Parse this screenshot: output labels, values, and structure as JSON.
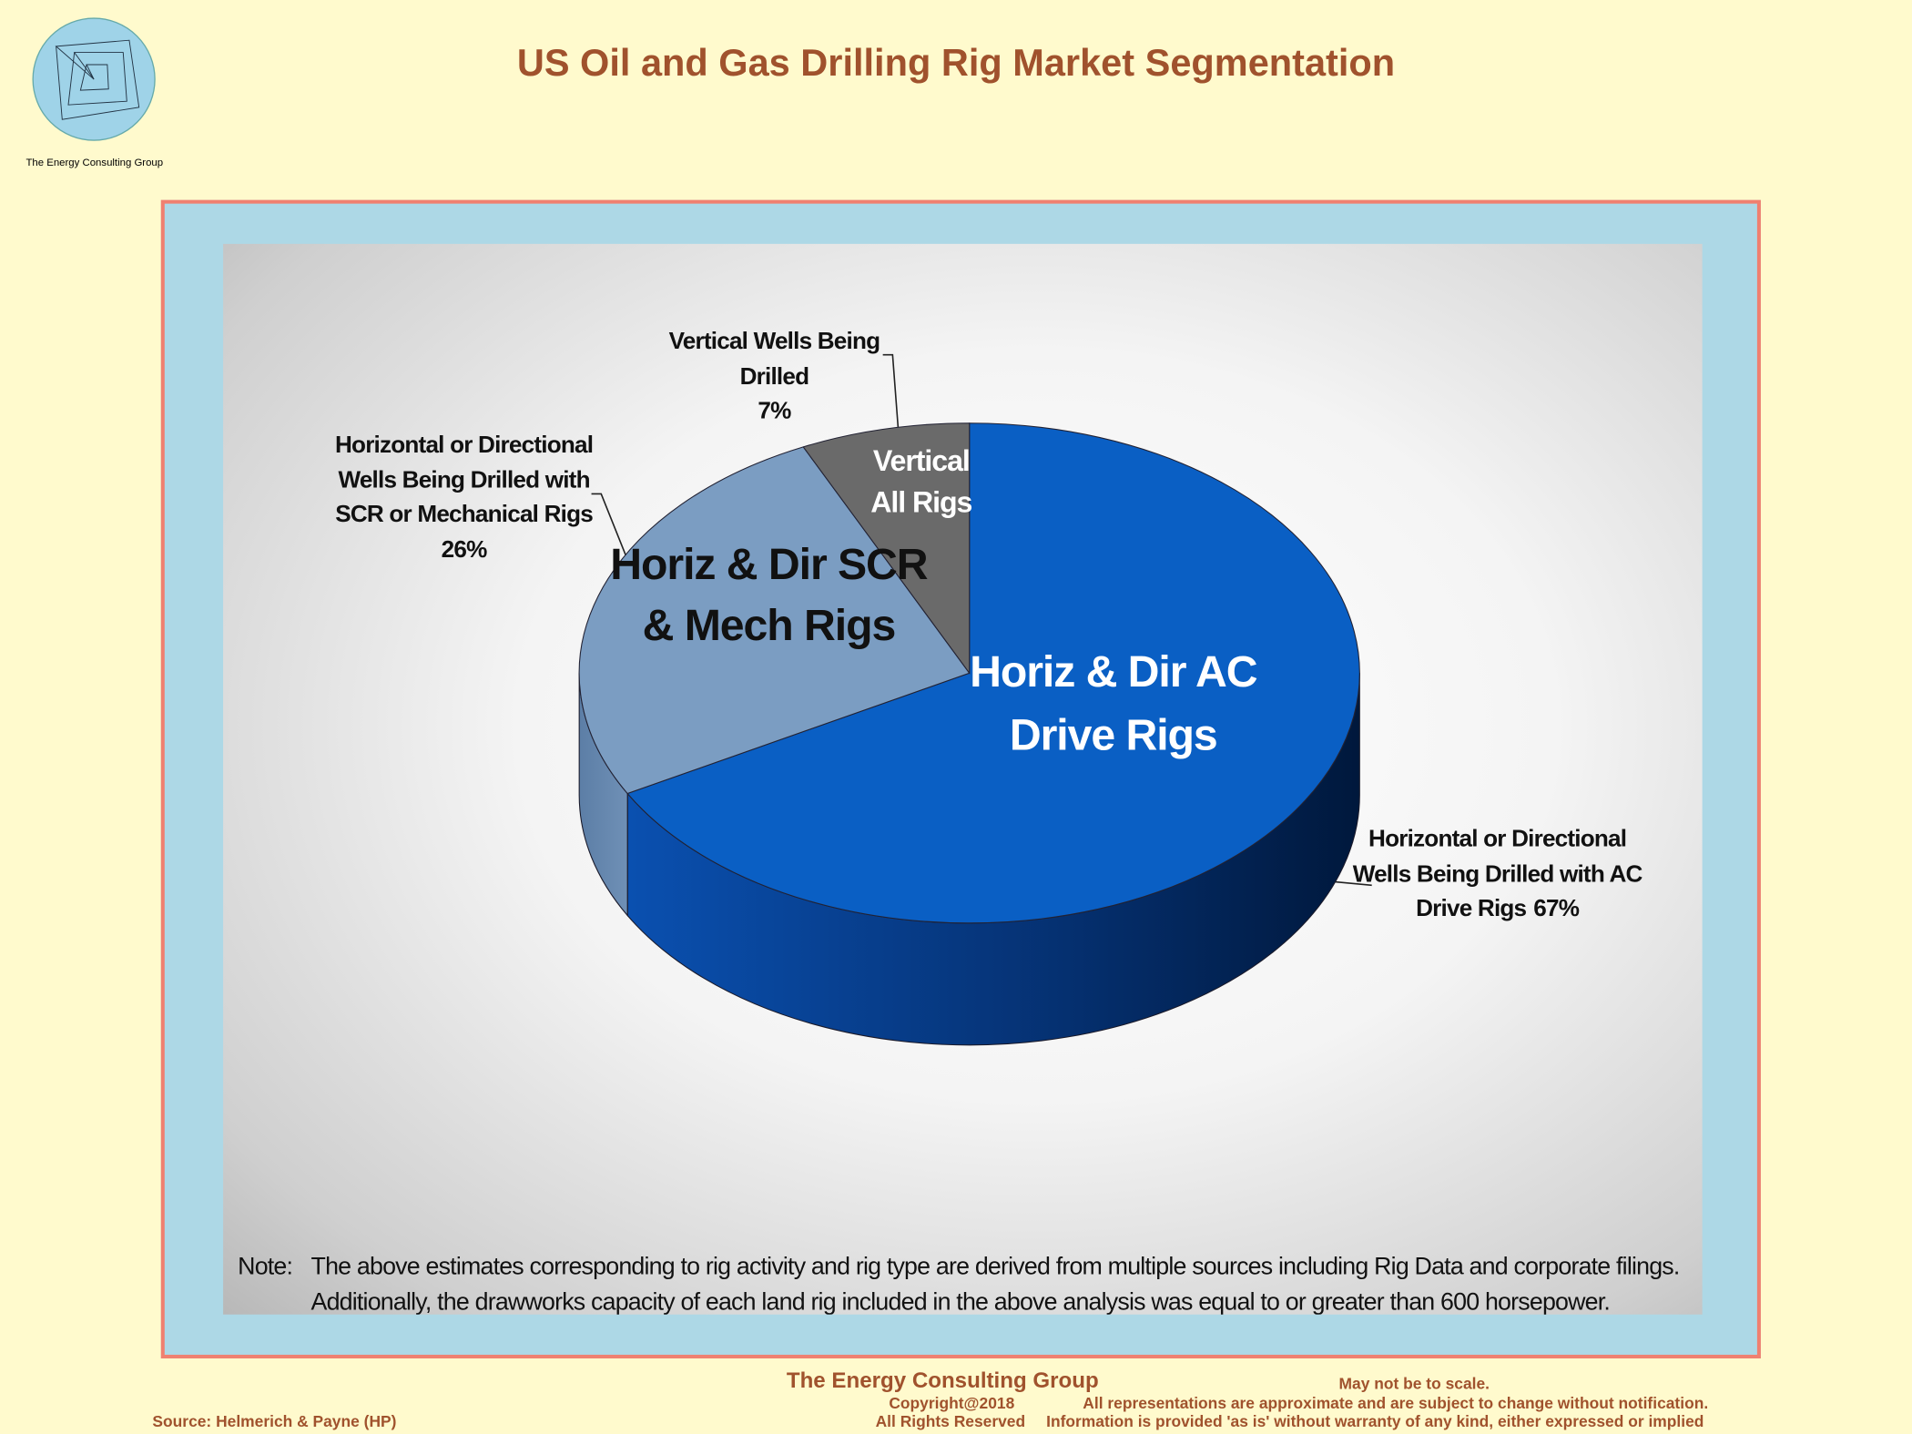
{
  "logo_text": "The Energy Consulting Group",
  "chart_data": {
    "type": "pie",
    "title": "US Oil and Gas Drilling Rig Market Segmentation",
    "categories": [
      "Horizontal or Directional Wells Being Drilled with AC Drive Rigs",
      "Horizontal or Directional Wells Being Drilled with SCR or Mechanical Rigs",
      "Vertical Wells Being Drilled"
    ],
    "values": [
      67,
      26,
      7
    ],
    "value_labels": [
      "67%",
      "26%",
      "7%"
    ],
    "inner_labels": [
      "Horiz & Dir AC Drive Rigs",
      "Horiz & Dir SCR & Mech Rigs",
      "Vertical All Rigs"
    ],
    "colors": [
      "#0a5fc4",
      "#7b9dc2",
      "#6a6a6a"
    ],
    "note_label": "Note:",
    "note": [
      "The above estimates corresponding to rig activity and rig type are derived from multiple sources including Rig Data and corporate filings.",
      "Additionally, the drawworks capacity of each land rig included in the above analysis was equal to or greater than 600 horsepower."
    ]
  },
  "footer": {
    "company": "The Energy Consulting Group",
    "copyright": "Copyright@2018",
    "rights": "All Rights Reserved",
    "scale": "May not be to scale.",
    "disclaimer1": "All representations are approximate and are subject to change without notification.",
    "disclaimer2": "Information is provided 'as is' without warranty of any kind, either expressed or implied",
    "source": "Source: Helmerich & Payne (HP)"
  }
}
